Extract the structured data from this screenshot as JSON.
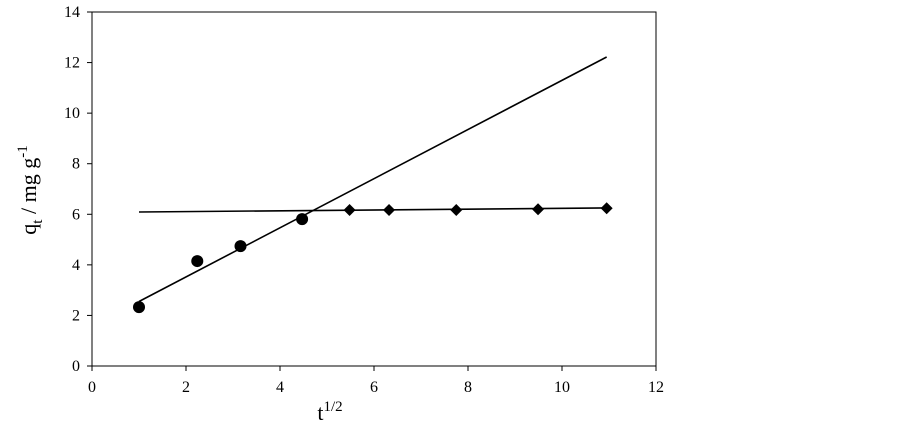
{
  "chart_data": {
    "type": "scatter",
    "xlabel": {
      "base": "t",
      "sup": "1/2"
    },
    "ylabel": {
      "base": "q",
      "sub": "t",
      "main": " / mg g",
      "sup": "-1"
    },
    "xlim": [
      0,
      12
    ],
    "ylim": [
      0,
      14
    ],
    "xticks": [
      0,
      2,
      4,
      6,
      8,
      10,
      12
    ],
    "yticks": [
      0,
      2,
      4,
      6,
      8,
      10,
      12,
      14
    ],
    "grid": false,
    "series": [
      {
        "type": "scatter",
        "marker": "circle",
        "color": "#000000",
        "x": [
          1,
          2.24,
          3.16,
          4.47
        ],
        "values": [
          2.33,
          4.15,
          4.74,
          5.81
        ]
      },
      {
        "type": "scatter",
        "marker": "diamond",
        "color": "#000000",
        "x": [
          5.48,
          6.32,
          7.75,
          9.49,
          10.95
        ],
        "values": [
          6.17,
          6.17,
          6.17,
          6.2,
          6.24
        ]
      },
      {
        "type": "line",
        "color": "#000000",
        "x": [
          1,
          10.95
        ],
        "values": [
          2.55,
          12.22
        ]
      },
      {
        "type": "line",
        "color": "#000000",
        "x": [
          1,
          10.95
        ],
        "values": [
          6.09,
          6.25
        ]
      }
    ]
  }
}
